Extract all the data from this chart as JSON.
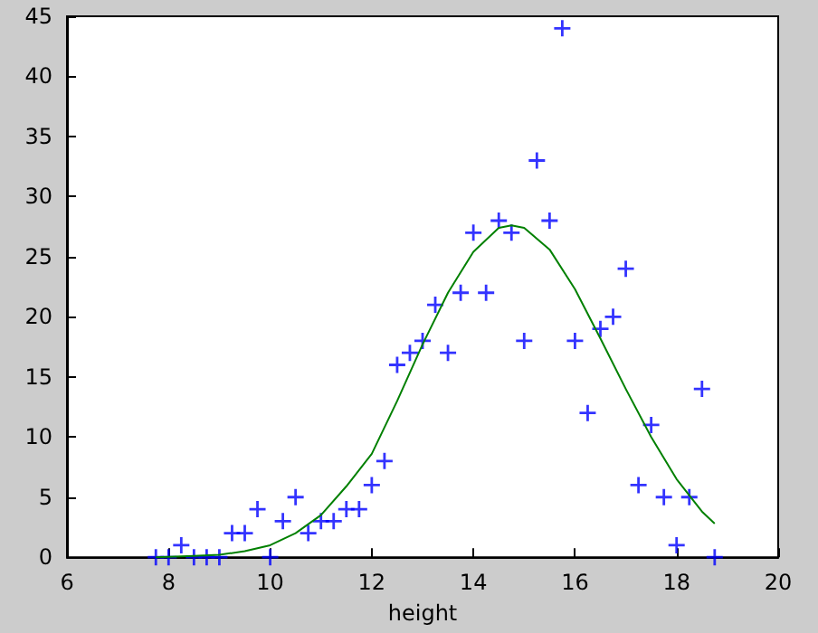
{
  "chart_data": {
    "type": "scatter",
    "xlabel": "height",
    "xlim": [
      6,
      20
    ],
    "xticks": [
      6,
      8,
      10,
      12,
      14,
      16,
      18,
      20
    ],
    "ylim": [
      0,
      45
    ],
    "yticks": [
      0,
      5,
      10,
      15,
      20,
      25,
      30,
      35,
      40,
      45
    ],
    "grid": false,
    "marker": "cross",
    "series": [
      {
        "color": "#0000ff",
        "x": [
          7.75,
          8,
          8.25,
          8.5,
          8.75,
          9,
          9.25,
          9.5,
          9.75,
          10,
          10.25,
          10.5,
          10.75,
          11,
          11.25,
          11.5,
          11.75,
          12,
          12.25,
          12.5,
          12.75,
          13,
          13.25,
          13.5,
          13.75,
          14,
          14.25,
          14.5,
          14.75,
          15,
          15.25,
          15.5,
          15.75,
          16,
          16.25,
          16.5,
          16.75,
          17,
          17.25,
          17.5,
          17.75,
          18,
          18.25,
          18.5,
          18.75
        ],
        "values": [
          0,
          0,
          1,
          0,
          0,
          0,
          2,
          2,
          4,
          0,
          3,
          5,
          2,
          3,
          3,
          4,
          4,
          6,
          8,
          16,
          17,
          18,
          21,
          17,
          22,
          27,
          22,
          28,
          27,
          18,
          33,
          28,
          44,
          18,
          12,
          19,
          20,
          24,
          6,
          11,
          5,
          1,
          5,
          14,
          0
        ]
      },
      {
        "type": "line",
        "color": "#008000",
        "marker": "none",
        "line_style": "solid",
        "x": [
          7.75,
          8.5,
          9,
          9.5,
          10,
          10.5,
          11,
          11.5,
          12,
          12.5,
          13,
          13.5,
          14,
          14.5,
          14.75,
          15,
          15.5,
          16,
          16.5,
          17,
          17.5,
          18,
          18.5,
          18.75
        ],
        "values": [
          0,
          0.1,
          0.2,
          0.5,
          1,
          2,
          3.5,
          5.9,
          8.6,
          13,
          17.7,
          22,
          25.4,
          27.4,
          27.6,
          27.4,
          25.6,
          22.3,
          18.2,
          14,
          10,
          6.5,
          3.8,
          2.8
        ]
      }
    ]
  }
}
